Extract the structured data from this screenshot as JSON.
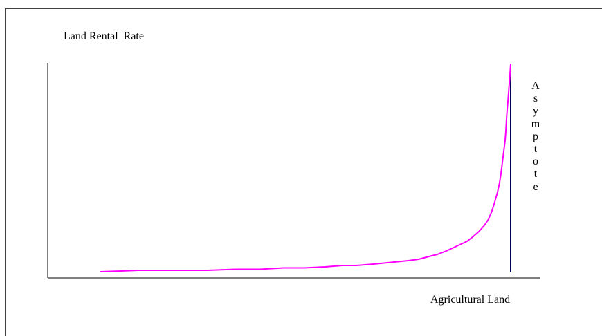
{
  "diagram": {
    "y_axis_label": "Land Rental  Rate",
    "x_axis_label": "Agricultural Land",
    "asymptote_label": "Asymptote",
    "colors": {
      "curve": "#ff00ff",
      "asymptote": "#00005a",
      "axes": "#000000",
      "frame": "#000000",
      "background": "#ffffff"
    }
  }
}
